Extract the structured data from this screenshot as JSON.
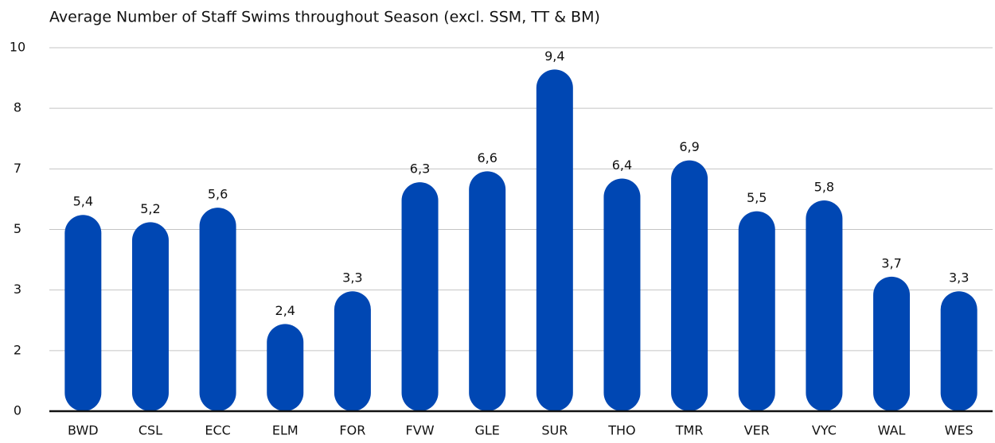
{
  "chart_data": {
    "type": "bar",
    "title": "Average Number of Staff Swims throughout Season (excl. SSM, TT & BM)",
    "categories": [
      "BWD",
      "CSL",
      "ECC",
      "ELM",
      "FOR",
      "FVW",
      "GLE",
      "SUR",
      "THO",
      "TMR",
      "VER",
      "VYC",
      "WAL",
      "WES"
    ],
    "values": [
      5.4,
      5.2,
      5.6,
      2.4,
      3.3,
      6.3,
      6.6,
      9.4,
      6.4,
      6.9,
      5.5,
      5.8,
      3.7,
      3.3
    ],
    "value_labels": [
      "5,4",
      "5,2",
      "5,6",
      "2,4",
      "3,3",
      "6,3",
      "6,6",
      "9,4",
      "6,4",
      "6,9",
      "5,5",
      "5,8",
      "3,7",
      "3,3"
    ],
    "color": "#0047b3",
    "ylim": [
      0,
      10
    ],
    "yticks": [
      0,
      {
        "value": 1.667,
        "label": "2"
      },
      {
        "value": 3.333,
        "label": "3"
      },
      5,
      {
        "value": 6.667,
        "label": "7"
      },
      {
        "value": 8.333,
        "label": "8"
      },
      10
    ],
    "grid": true
  }
}
